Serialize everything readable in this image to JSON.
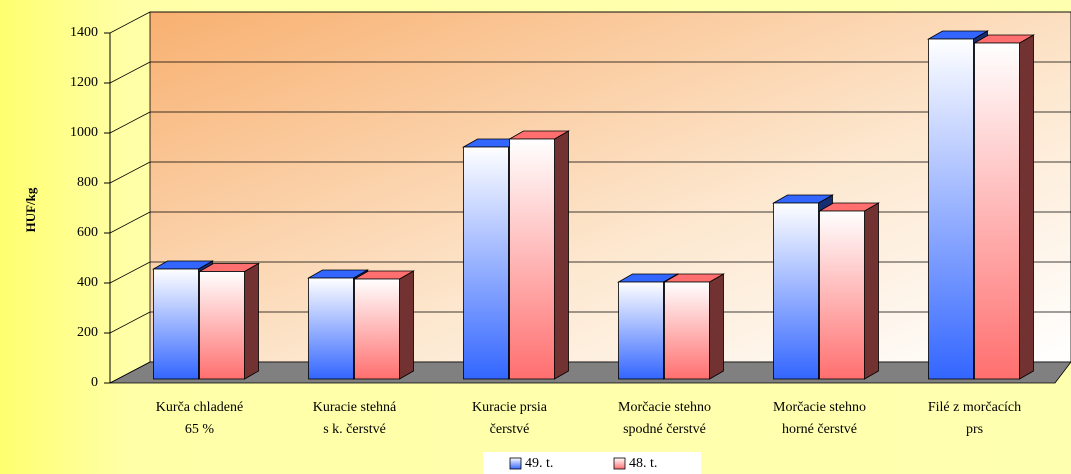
{
  "chart_data": {
    "type": "bar",
    "y_label": "HUF/kg",
    "categories": [
      "Kurča chladené\n65 %",
      "Kuracie stehná\ns k. čerstvé",
      "Kuracie prsia\nčerstvé",
      "Morčacie stehno\nspodné čerstvé",
      "Morčacie stehno\nhorné čerstvé",
      "Filé z morčacích\nprs"
    ],
    "series": [
      {
        "name": "49. t.",
        "color": "#3366ff",
        "values": [
          440,
          404,
          928,
          388,
          704,
          1360
        ]
      },
      {
        "name": "48. t.",
        "color": "#ff6f6f",
        "values": [
          430,
          400,
          960,
          388,
          672,
          1344
        ]
      }
    ],
    "ylim": [
      0,
      1400
    ],
    "yticks": [
      0,
      200,
      400,
      600,
      800,
      1000,
      1200,
      1400
    ],
    "grid": true
  }
}
